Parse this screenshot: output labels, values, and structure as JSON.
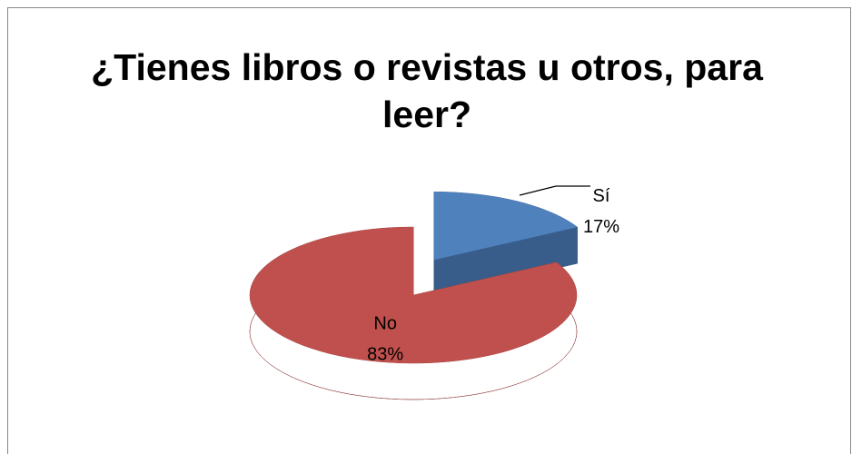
{
  "chart_data": {
    "type": "pie",
    "title": "¿Tienes libros o revistas u otros, para leer?",
    "categories": [
      "Sí",
      "No"
    ],
    "values": [
      17,
      83
    ],
    "value_labels": [
      "17%",
      "83%"
    ],
    "colors": [
      "#4f81bd",
      "#c0504d"
    ],
    "side_colors": [
      "#385d8a",
      "#8c3836"
    ]
  }
}
